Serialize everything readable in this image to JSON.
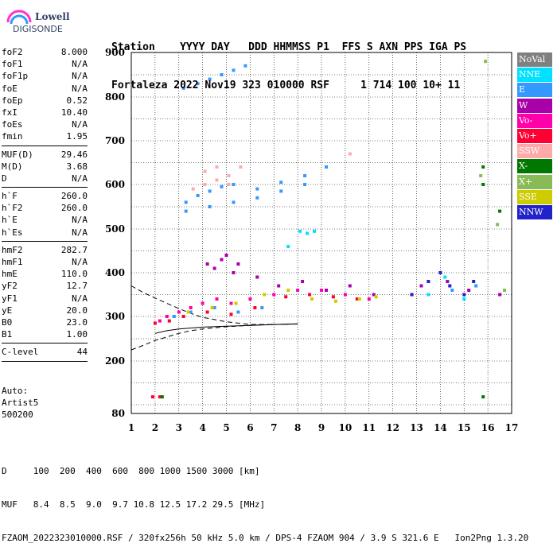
{
  "logo": {
    "line1": "Lowell",
    "line2": "DIGISONDE"
  },
  "header": {
    "line1": "Station    YYYY DAY   DDD HHMMSS P1  FFS S AXN PPS IGA PS",
    "line2": "Fortaleza 2022 Nov19 323 010000 RSF     1 714 100 10+ 11"
  },
  "params": {
    "group1": [
      {
        "name": "foF2",
        "value": "8.000"
      },
      {
        "name": "foF1",
        "value": "N/A"
      },
      {
        "name": "foF1p",
        "value": "N/A"
      },
      {
        "name": "foE",
        "value": "N/A"
      },
      {
        "name": "foEp",
        "value": "0.52"
      },
      {
        "name": "fxI",
        "value": "10.40"
      },
      {
        "name": "foEs",
        "value": "N/A"
      },
      {
        "name": "fmin",
        "value": "1.95"
      }
    ],
    "group2": [
      {
        "name": "MUF(D)",
        "value": "29.46"
      },
      {
        "name": "M(D)",
        "value": "3.68"
      },
      {
        "name": "D",
        "value": "N/A"
      }
    ],
    "group3": [
      {
        "name": "h`F",
        "value": "260.0"
      },
      {
        "name": "h`F2",
        "value": "260.0"
      },
      {
        "name": "h`E",
        "value": "N/A"
      },
      {
        "name": "h`Es",
        "value": "N/A"
      }
    ],
    "group4": [
      {
        "name": "hmF2",
        "value": "282.7"
      },
      {
        "name": "hmF1",
        "value": "N/A"
      },
      {
        "name": "hmE",
        "value": "110.0"
      },
      {
        "name": "yF2",
        "value": "12.7"
      },
      {
        "name": "yF1",
        "value": "N/A"
      },
      {
        "name": "yE",
        "value": "20.0"
      },
      {
        "name": "B0",
        "value": "23.0"
      },
      {
        "name": "B1",
        "value": "1.00"
      }
    ],
    "group5": [
      {
        "name": "C-level",
        "value": "44"
      }
    ]
  },
  "auto": {
    "line1": "Auto:",
    "line2": "Artist5",
    "line3": "500200"
  },
  "footer": {
    "line1": "D     100  200  400  600  800 1000 1500 3000 [km]",
    "line2": "MUF   8.4  8.5  9.0  9.7 10.8 12.5 17.2 29.5 [MHz]",
    "line3": "FZAOM_2022323010000.RSF / 320fx256h 50 kHz 5.0 km / DPS-4 FZAOM 904 / 3.9 S 321.6 E   Ion2Png 1.3.20"
  },
  "legend": [
    {
      "label": "NoVal",
      "color": "#808080"
    },
    {
      "label": "NNE",
      "color": "#00e0ff"
    },
    {
      "label": "E",
      "color": "#3399ff"
    },
    {
      "label": "W",
      "color": "#aa00aa"
    },
    {
      "label": "Vo-",
      "color": "#ff00aa"
    },
    {
      "label": "Vo+",
      "color": "#ff0033"
    },
    {
      "label": "SSW",
      "color": "#ffaaaa"
    },
    {
      "label": "X-",
      "color": "#007700"
    },
    {
      "label": "X+",
      "color": "#88bb55"
    },
    {
      "label": "SSE",
      "color": "#cccc00"
    },
    {
      "label": "NNW",
      "color": "#2222cc"
    }
  ],
  "chart_data": {
    "type": "scatter",
    "xlim": [
      1,
      17
    ],
    "ylim": [
      80,
      900
    ],
    "x_ticks": [
      1,
      2,
      3,
      4,
      5,
      6,
      7,
      8,
      9,
      10,
      11,
      12,
      13,
      14,
      15,
      16,
      17
    ],
    "y_ticks": [
      80,
      200,
      300,
      400,
      500,
      600,
      700,
      800,
      900
    ],
    "grid": true,
    "series": [
      {
        "name": "E",
        "color": "#3399ff",
        "points": [
          [
            3.2,
            820
          ],
          [
            3.8,
            830
          ],
          [
            4.3,
            840
          ],
          [
            4.8,
            850
          ],
          [
            5.3,
            860
          ],
          [
            5.8,
            870
          ],
          [
            3.3,
            560
          ],
          [
            3.8,
            575
          ],
          [
            4.3,
            585
          ],
          [
            4.8,
            595
          ],
          [
            5.3,
            600
          ],
          [
            6.3,
            590
          ],
          [
            7.3,
            605
          ],
          [
            8.3,
            620
          ],
          [
            9.2,
            640
          ],
          [
            3.3,
            540
          ],
          [
            4.3,
            550
          ],
          [
            5.3,
            560
          ],
          [
            6.3,
            570
          ],
          [
            7.3,
            585
          ],
          [
            8.3,
            600
          ],
          [
            2.8,
            300
          ],
          [
            3.5,
            310
          ],
          [
            4.5,
            320
          ],
          [
            5.5,
            310
          ],
          [
            6.5,
            320
          ],
          [
            13.5,
            350
          ],
          [
            14.5,
            360
          ],
          [
            15.5,
            370
          ]
        ]
      },
      {
        "name": "W",
        "color": "#aa00aa",
        "points": [
          [
            4.2,
            420
          ],
          [
            4.5,
            410
          ],
          [
            4.8,
            430
          ],
          [
            5.0,
            440
          ],
          [
            5.3,
            400
          ],
          [
            5.5,
            420
          ],
          [
            6.3,
            390
          ],
          [
            7.2,
            370
          ],
          [
            8.2,
            380
          ],
          [
            9.2,
            360
          ],
          [
            10.2,
            370
          ],
          [
            11.2,
            350
          ],
          [
            13.2,
            370
          ],
          [
            14.3,
            380
          ],
          [
            15.2,
            360
          ],
          [
            16.5,
            350
          ]
        ]
      },
      {
        "name": "Vo-",
        "color": "#ff00aa",
        "points": [
          [
            2.2,
            290
          ],
          [
            2.5,
            300
          ],
          [
            3.0,
            310
          ],
          [
            3.5,
            320
          ],
          [
            4.0,
            330
          ],
          [
            4.6,
            340
          ],
          [
            5.2,
            330
          ],
          [
            6.0,
            340
          ],
          [
            7.0,
            350
          ],
          [
            8.0,
            360
          ],
          [
            9.0,
            360
          ],
          [
            10.0,
            350
          ],
          [
            11.0,
            340
          ]
        ]
      },
      {
        "name": "Vo+",
        "color": "#ff0033",
        "points": [
          [
            2.0,
            285
          ],
          [
            2.6,
            290
          ],
          [
            3.2,
            300
          ],
          [
            4.2,
            310
          ],
          [
            5.2,
            305
          ],
          [
            6.2,
            320
          ],
          [
            7.5,
            345
          ],
          [
            8.5,
            350
          ],
          [
            9.5,
            345
          ],
          [
            10.5,
            340
          ],
          [
            1.9,
            118
          ],
          [
            2.2,
            118
          ]
        ]
      },
      {
        "name": "NNE",
        "color": "#00e0ff",
        "points": [
          [
            8.1,
            495
          ],
          [
            8.4,
            490
          ],
          [
            8.7,
            495
          ],
          [
            7.6,
            460
          ],
          [
            13.5,
            350
          ],
          [
            14.2,
            390
          ],
          [
            15.0,
            340
          ]
        ]
      },
      {
        "name": "SSW",
        "color": "#ffaaaa",
        "points": [
          [
            4.1,
            630
          ],
          [
            4.6,
            640
          ],
          [
            5.1,
            620
          ],
          [
            5.6,
            640
          ],
          [
            4.1,
            600
          ],
          [
            4.6,
            610
          ],
          [
            5.1,
            600
          ],
          [
            3.6,
            590
          ],
          [
            10.2,
            670
          ]
        ]
      },
      {
        "name": "X-",
        "color": "#007700",
        "points": [
          [
            2.3,
            118
          ],
          [
            15.8,
            640
          ],
          [
            16.5,
            540
          ],
          [
            15.8,
            600
          ],
          [
            15.8,
            118
          ]
        ]
      },
      {
        "name": "X+",
        "color": "#88bb55",
        "points": [
          [
            15.9,
            880
          ],
          [
            16.4,
            510
          ],
          [
            15.7,
            620
          ],
          [
            16.7,
            360
          ]
        ]
      },
      {
        "name": "SSE",
        "color": "#cccc00",
        "points": [
          [
            3.4,
            310
          ],
          [
            4.4,
            320
          ],
          [
            5.4,
            330
          ],
          [
            6.6,
            350
          ],
          [
            7.6,
            360
          ],
          [
            8.6,
            340
          ],
          [
            9.6,
            335
          ],
          [
            10.6,
            340
          ],
          [
            11.3,
            345
          ]
        ]
      },
      {
        "name": "NNW",
        "color": "#2222cc",
        "points": [
          [
            12.8,
            350
          ],
          [
            13.5,
            380
          ],
          [
            14.0,
            400
          ],
          [
            14.4,
            370
          ],
          [
            15.0,
            350
          ],
          [
            15.4,
            380
          ]
        ]
      }
    ],
    "curves": {
      "solid_lower": [
        [
          2.0,
          262
        ],
        [
          2.5,
          268
        ],
        [
          3.0,
          272
        ],
        [
          4.0,
          276
        ],
        [
          5.0,
          278
        ],
        [
          6.0,
          280
        ],
        [
          7.0,
          282
        ],
        [
          8.0,
          283.5
        ]
      ],
      "dashed_upper": [
        [
          1.0,
          370
        ],
        [
          1.5,
          355
        ],
        [
          2.0,
          342
        ],
        [
          2.5,
          330
        ],
        [
          3.0,
          318
        ],
        [
          3.5,
          307
        ],
        [
          4.0,
          298
        ],
        [
          5.0,
          288
        ],
        [
          6.0,
          282
        ],
        [
          7.0,
          282
        ],
        [
          8.0,
          283
        ]
      ],
      "dashed_lower": [
        [
          1.0,
          225
        ],
        [
          1.5,
          235
        ],
        [
          2.0,
          246
        ],
        [
          2.5,
          254
        ],
        [
          3.0,
          262
        ],
        [
          3.5,
          268
        ],
        [
          4.0,
          272
        ],
        [
          5.0,
          277
        ],
        [
          6.0,
          280
        ],
        [
          7.0,
          282
        ],
        [
          8.0,
          283
        ]
      ]
    }
  }
}
